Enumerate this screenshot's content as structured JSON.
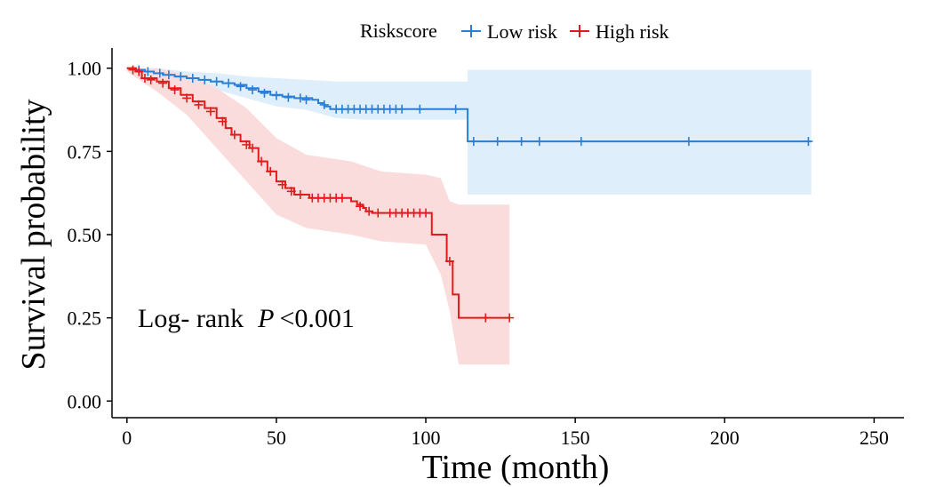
{
  "chart_data": {
    "type": "line",
    "subtype": "kaplan-meier",
    "title": "",
    "xlabel": "Time (month)",
    "ylabel": "Survival probability",
    "xlim": [
      -5,
      260
    ],
    "ylim": [
      -0.05,
      1.05
    ],
    "xticks": [
      0,
      50,
      100,
      150,
      200,
      250
    ],
    "xtick_labels": [
      "0",
      "50",
      "100",
      "150",
      "200",
      "250"
    ],
    "yticks": [
      0,
      0.25,
      0.5,
      0.75,
      1.0
    ],
    "ytick_labels": [
      "0.00",
      "0.25",
      "0.50",
      "0.75",
      "1.00"
    ],
    "grid": false,
    "legend": {
      "title": "Riskscore",
      "position": "top",
      "entries": [
        "Low risk",
        "High risk"
      ]
    },
    "annotation": {
      "prefix": "Log- rank",
      "p_symbol": "P",
      "value": "<0.001"
    },
    "series": [
      {
        "name": "Low risk",
        "color": "#2a7fd5",
        "band_color": "#deeefb",
        "steps": [
          [
            0,
            1.0
          ],
          [
            3,
            0.995
          ],
          [
            6,
            0.99
          ],
          [
            9,
            0.985
          ],
          [
            12,
            0.98
          ],
          [
            16,
            0.975
          ],
          [
            20,
            0.97
          ],
          [
            24,
            0.965
          ],
          [
            28,
            0.96
          ],
          [
            32,
            0.955
          ],
          [
            36,
            0.95
          ],
          [
            40,
            0.94
          ],
          [
            44,
            0.93
          ],
          [
            48,
            0.92
          ],
          [
            52,
            0.915
          ],
          [
            56,
            0.91
          ],
          [
            62,
            0.905
          ],
          [
            64,
            0.895
          ],
          [
            66,
            0.885
          ],
          [
            68,
            0.877
          ],
          [
            114,
            0.877
          ],
          [
            114,
            0.78
          ],
          [
            229,
            0.78
          ]
        ],
        "upper": [
          [
            0,
            1.0
          ],
          [
            10,
            1.0
          ],
          [
            20,
            0.99
          ],
          [
            30,
            0.985
          ],
          [
            40,
            0.975
          ],
          [
            50,
            0.97
          ],
          [
            60,
            0.965
          ],
          [
            70,
            0.96
          ],
          [
            80,
            0.96
          ],
          [
            114,
            0.96
          ],
          [
            114,
            0.995
          ],
          [
            229,
            0.995
          ]
        ],
        "lower": [
          [
            0,
            0.995
          ],
          [
            10,
            0.97
          ],
          [
            20,
            0.95
          ],
          [
            30,
            0.935
          ],
          [
            40,
            0.91
          ],
          [
            50,
            0.885
          ],
          [
            60,
            0.875
          ],
          [
            70,
            0.85
          ],
          [
            80,
            0.845
          ],
          [
            114,
            0.845
          ],
          [
            114,
            0.62
          ],
          [
            229,
            0.62
          ]
        ],
        "censors": [
          [
            4,
            0.995
          ],
          [
            7,
            0.99
          ],
          [
            11,
            0.985
          ],
          [
            14,
            0.98
          ],
          [
            18,
            0.975
          ],
          [
            22,
            0.97
          ],
          [
            26,
            0.965
          ],
          [
            30,
            0.96
          ],
          [
            34,
            0.955
          ],
          [
            38,
            0.945
          ],
          [
            42,
            0.935
          ],
          [
            46,
            0.925
          ],
          [
            50,
            0.918
          ],
          [
            54,
            0.912
          ],
          [
            58,
            0.91
          ],
          [
            60,
            0.905
          ],
          [
            66,
            0.89
          ],
          [
            70,
            0.877
          ],
          [
            72,
            0.877
          ],
          [
            74,
            0.877
          ],
          [
            76,
            0.877
          ],
          [
            78,
            0.877
          ],
          [
            80,
            0.877
          ],
          [
            82,
            0.877
          ],
          [
            84,
            0.877
          ],
          [
            86,
            0.877
          ],
          [
            88,
            0.877
          ],
          [
            90,
            0.877
          ],
          [
            92,
            0.877
          ],
          [
            98,
            0.877
          ],
          [
            110,
            0.877
          ],
          [
            116,
            0.78
          ],
          [
            124,
            0.78
          ],
          [
            132,
            0.78
          ],
          [
            138,
            0.78
          ],
          [
            152,
            0.78
          ],
          [
            188,
            0.78
          ],
          [
            228,
            0.78
          ]
        ]
      },
      {
        "name": "High risk",
        "color": "#e31a1c",
        "band_color": "#fbdcdc",
        "steps": [
          [
            0,
            1.0
          ],
          [
            3,
            0.99
          ],
          [
            5,
            0.97
          ],
          [
            10,
            0.96
          ],
          [
            14,
            0.94
          ],
          [
            18,
            0.92
          ],
          [
            22,
            0.9
          ],
          [
            26,
            0.88
          ],
          [
            30,
            0.85
          ],
          [
            33,
            0.82
          ],
          [
            35,
            0.8
          ],
          [
            38,
            0.78
          ],
          [
            41,
            0.76
          ],
          [
            44,
            0.72
          ],
          [
            47,
            0.69
          ],
          [
            50,
            0.66
          ],
          [
            53,
            0.64
          ],
          [
            56,
            0.62
          ],
          [
            61,
            0.61
          ],
          [
            65,
            0.61
          ],
          [
            74,
            0.61
          ],
          [
            75,
            0.6
          ],
          [
            77,
            0.59
          ],
          [
            79,
            0.58
          ],
          [
            80,
            0.57
          ],
          [
            82,
            0.565
          ],
          [
            102,
            0.565
          ],
          [
            102,
            0.5
          ],
          [
            107,
            0.5
          ],
          [
            107,
            0.42
          ],
          [
            109,
            0.42
          ],
          [
            109,
            0.32
          ],
          [
            111,
            0.32
          ],
          [
            111,
            0.25
          ],
          [
            128,
            0.25
          ]
        ],
        "upper": [
          [
            0,
            1.0
          ],
          [
            10,
            1.0
          ],
          [
            20,
            0.98
          ],
          [
            30,
            0.94
          ],
          [
            40,
            0.88
          ],
          [
            50,
            0.79
          ],
          [
            60,
            0.74
          ],
          [
            75,
            0.72
          ],
          [
            85,
            0.69
          ],
          [
            100,
            0.68
          ],
          [
            105,
            0.67
          ],
          [
            108,
            0.6
          ],
          [
            111,
            0.59
          ],
          [
            128,
            0.59
          ]
        ],
        "lower": [
          [
            0,
            0.99
          ],
          [
            10,
            0.93
          ],
          [
            20,
            0.86
          ],
          [
            30,
            0.76
          ],
          [
            40,
            0.66
          ],
          [
            50,
            0.56
          ],
          [
            60,
            0.52
          ],
          [
            75,
            0.5
          ],
          [
            85,
            0.48
          ],
          [
            100,
            0.47
          ],
          [
            105,
            0.38
          ],
          [
            108,
            0.27
          ],
          [
            111,
            0.11
          ],
          [
            128,
            0.11
          ]
        ],
        "censors": [
          [
            2,
            0.995
          ],
          [
            4,
            0.99
          ],
          [
            6,
            0.97
          ],
          [
            8,
            0.965
          ],
          [
            12,
            0.955
          ],
          [
            16,
            0.935
          ],
          [
            20,
            0.91
          ],
          [
            24,
            0.89
          ],
          [
            28,
            0.87
          ],
          [
            32,
            0.84
          ],
          [
            36,
            0.8
          ],
          [
            40,
            0.77
          ],
          [
            42,
            0.76
          ],
          [
            45,
            0.72
          ],
          [
            48,
            0.69
          ],
          [
            52,
            0.65
          ],
          [
            55,
            0.63
          ],
          [
            58,
            0.62
          ],
          [
            62,
            0.61
          ],
          [
            64,
            0.61
          ],
          [
            66,
            0.61
          ],
          [
            68,
            0.61
          ],
          [
            70,
            0.61
          ],
          [
            72,
            0.61
          ],
          [
            78,
            0.585
          ],
          [
            81,
            0.57
          ],
          [
            84,
            0.565
          ],
          [
            88,
            0.565
          ],
          [
            90,
            0.565
          ],
          [
            92,
            0.565
          ],
          [
            94,
            0.565
          ],
          [
            96,
            0.565
          ],
          [
            98,
            0.565
          ],
          [
            100,
            0.565
          ],
          [
            108,
            0.42
          ],
          [
            120,
            0.25
          ],
          [
            128,
            0.25
          ]
        ]
      }
    ]
  }
}
